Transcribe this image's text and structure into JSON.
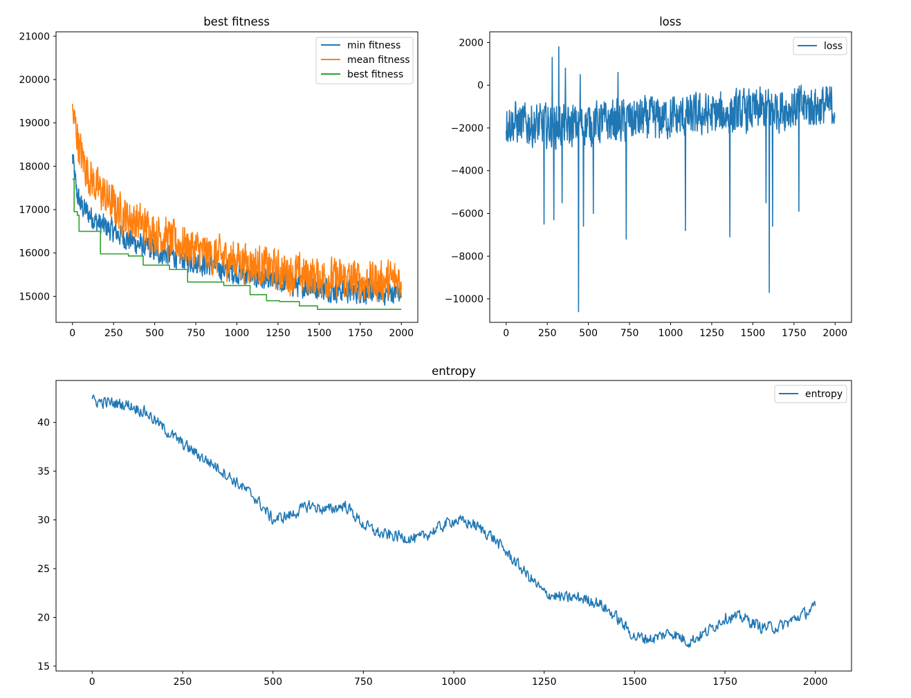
{
  "chart_data": [
    {
      "type": "line",
      "title": "best fitness",
      "xlabel": "",
      "ylabel": "",
      "xlim": [
        -100,
        2100
      ],
      "ylim": [
        14400,
        21100
      ],
      "xticks": [
        0,
        250,
        500,
        750,
        1000,
        1250,
        1500,
        1750,
        2000
      ],
      "yticks": [
        15000,
        16000,
        17000,
        18000,
        19000,
        20000,
        21000
      ],
      "grid": false,
      "legend_position": "top-right",
      "series": [
        {
          "name": "min fitness",
          "color": "#1f77b4",
          "style": "noisy",
          "x": [
            0,
            25,
            50,
            100,
            150,
            200,
            250,
            300,
            400,
            500,
            600,
            700,
            800,
            900,
            1000,
            1100,
            1200,
            1300,
            1400,
            1500,
            1600,
            1700,
            1800,
            1900,
            2000
          ],
          "values": [
            18200,
            17400,
            17100,
            16900,
            16700,
            16600,
            16500,
            16400,
            16200,
            16050,
            15950,
            15850,
            15750,
            15650,
            15550,
            15450,
            15350,
            15300,
            15250,
            15200,
            15150,
            15120,
            15100,
            15080,
            15100
          ],
          "noise": 350
        },
        {
          "name": "mean fitness",
          "color": "#ff7f0e",
          "style": "noisy",
          "x": [
            0,
            25,
            50,
            100,
            150,
            200,
            250,
            300,
            400,
            500,
            600,
            700,
            800,
            900,
            1000,
            1100,
            1200,
            1300,
            1400,
            1500,
            1600,
            1700,
            1800,
            1900,
            2000
          ],
          "values": [
            19200,
            18800,
            18300,
            17800,
            17500,
            17300,
            17100,
            16900,
            16700,
            16500,
            16300,
            16150,
            16000,
            15900,
            15850,
            15750,
            15650,
            15550,
            15500,
            15450,
            15400,
            15380,
            15350,
            15350,
            15400
          ],
          "noise": 600
        },
        {
          "name": "best fitness",
          "color": "#2ca02c",
          "style": "step",
          "x": [
            0,
            10,
            30,
            40,
            170,
            340,
            430,
            590,
            700,
            920,
            1080,
            1180,
            1260,
            1380,
            1490,
            2000
          ],
          "values": [
            17700,
            16950,
            16870,
            16500,
            15980,
            15930,
            15720,
            15620,
            15330,
            15250,
            15040,
            14900,
            14880,
            14780,
            14700,
            14700
          ]
        }
      ]
    },
    {
      "type": "line",
      "title": "loss",
      "xlabel": "",
      "ylabel": "",
      "xlim": [
        -100,
        2100
      ],
      "ylim": [
        -11100,
        2500
      ],
      "xticks": [
        0,
        250,
        500,
        750,
        1000,
        1250,
        1500,
        1750,
        2000
      ],
      "yticks": [
        2000,
        0,
        -2000,
        -4000,
        -6000,
        -8000,
        -10000
      ],
      "ytick_labels": [
        "2000",
        "0",
        "−2000",
        "−4000",
        "−6000",
        "−8000",
        "−10000"
      ],
      "grid": false,
      "legend_position": "top-right",
      "series": [
        {
          "name": "loss",
          "color": "#1f77b4",
          "style": "noisy",
          "x": [
            0,
            100,
            200,
            300,
            400,
            500,
            600,
            700,
            800,
            900,
            1000,
            1100,
            1200,
            1300,
            1400,
            1500,
            1600,
            1700,
            1800,
            1900,
            2000
          ],
          "values": [
            -1700,
            -1800,
            -1900,
            -1900,
            -1900,
            -1800,
            -1700,
            -1700,
            -1600,
            -1600,
            -1500,
            -1500,
            -1400,
            -1400,
            -1300,
            -1200,
            -1100,
            -1100,
            -1000,
            -1000,
            -1000
          ],
          "noise": 1300,
          "spikes": [
            [
              230,
              -6500
            ],
            [
              290,
              -6300
            ],
            [
              340,
              -5500
            ],
            [
              440,
              -10600
            ],
            [
              470,
              -6600
            ],
            [
              530,
              -6000
            ],
            [
              680,
              -7400
            ],
            [
              730,
              -7200
            ],
            [
              1090,
              -6800
            ],
            [
              1360,
              -7100
            ],
            [
              1580,
              -5500
            ],
            [
              1600,
              -9700
            ],
            [
              1620,
              -6600
            ],
            [
              1780,
              -5900
            ],
            [
              280,
              1300
            ],
            [
              320,
              1800
            ],
            [
              360,
              800
            ],
            [
              450,
              500
            ],
            [
              680,
              600
            ]
          ]
        }
      ]
    },
    {
      "type": "line",
      "title": "entropy",
      "xlabel": "",
      "ylabel": "",
      "xlim": [
        -100,
        2100
      ],
      "ylim": [
        14.5,
        44.3
      ],
      "xticks": [
        0,
        250,
        500,
        750,
        1000,
        1250,
        1500,
        1750,
        2000
      ],
      "yticks": [
        15,
        20,
        25,
        30,
        35,
        40
      ],
      "grid": false,
      "legend_position": "top-right",
      "series": [
        {
          "name": "entropy",
          "color": "#1f77b4",
          "style": "noisy",
          "x": [
            0,
            50,
            100,
            150,
            200,
            250,
            300,
            350,
            400,
            450,
            500,
            550,
            600,
            650,
            700,
            750,
            800,
            850,
            900,
            950,
            1000,
            1050,
            1100,
            1150,
            1200,
            1250,
            1300,
            1350,
            1400,
            1450,
            1500,
            1550,
            1600,
            1650,
            1700,
            1750,
            1800,
            1850,
            1900,
            1950,
            2000
          ],
          "values": [
            42.2,
            42.0,
            41.8,
            41.0,
            39.3,
            37.8,
            36.5,
            35.3,
            33.8,
            32.3,
            30.0,
            30.5,
            31.5,
            31.0,
            31.5,
            29.5,
            28.5,
            28.3,
            28.0,
            29.0,
            30.0,
            29.6,
            28.5,
            26.5,
            24.5,
            22.5,
            22.0,
            22.0,
            21.5,
            20.0,
            18.0,
            17.8,
            18.5,
            17.5,
            18.5,
            20.0,
            20.0,
            19.0,
            19.0,
            20.0,
            21.0
          ],
          "noise": 0.8
        }
      ]
    }
  ]
}
